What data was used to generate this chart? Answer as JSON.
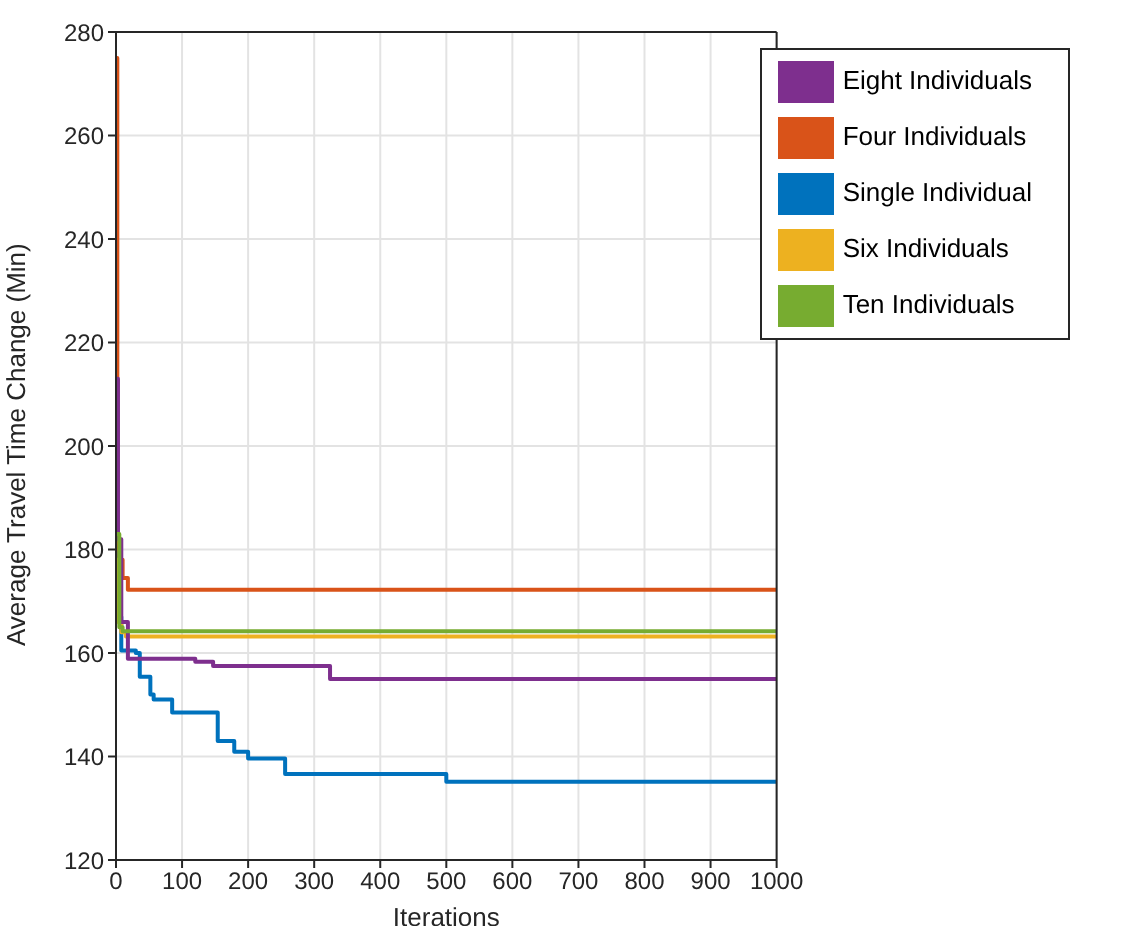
{
  "chart_data": {
    "type": "step",
    "xlabel": "Iterations",
    "ylabel": "Average Travel Time Change (Min)",
    "xlim": [
      0,
      1000
    ],
    "ylim": [
      120,
      280
    ],
    "xticks": [
      0,
      100,
      200,
      300,
      400,
      500,
      600,
      700,
      800,
      900,
      1000
    ],
    "yticks": [
      120,
      140,
      160,
      180,
      200,
      220,
      240,
      260,
      280
    ],
    "grid": true,
    "legend": "top right",
    "line_style": "solid",
    "series": [
      {
        "name": "Single Individual",
        "color": "#0072bd",
        "x": [
          0,
          3,
          8,
          30,
          36,
          52,
          57,
          85,
          154,
          179,
          200,
          256,
          500,
          1000
        ],
        "values": [
          184,
          167,
          160.5,
          160,
          155.4,
          152,
          151,
          148.5,
          143,
          140.9,
          139.6,
          136.6,
          135.1,
          135.1
        ]
      },
      {
        "name": "Four Individuals",
        "color": "#d95319",
        "x": [
          0,
          2,
          5,
          10,
          18,
          1000
        ],
        "values": [
          275,
          180,
          178,
          174.5,
          172.2,
          172.2
        ]
      },
      {
        "name": "Six Individuals",
        "color": "#edb120",
        "x": [
          0,
          3,
          8,
          15,
          1000
        ],
        "values": [
          178,
          166,
          164,
          163.2,
          163.2
        ]
      },
      {
        "name": "Eight Individuals",
        "color": "#7e2f8e",
        "x": [
          0,
          3,
          8,
          18,
          120,
          147,
          324,
          1000
        ],
        "values": [
          213,
          182,
          166,
          158.9,
          158.3,
          157.5,
          155,
          155
        ]
      },
      {
        "name": "Ten Individuals",
        "color": "#77ac30",
        "x": [
          0,
          5,
          10,
          1000
        ],
        "values": [
          183,
          165,
          164.2,
          164.2
        ]
      }
    ]
  }
}
